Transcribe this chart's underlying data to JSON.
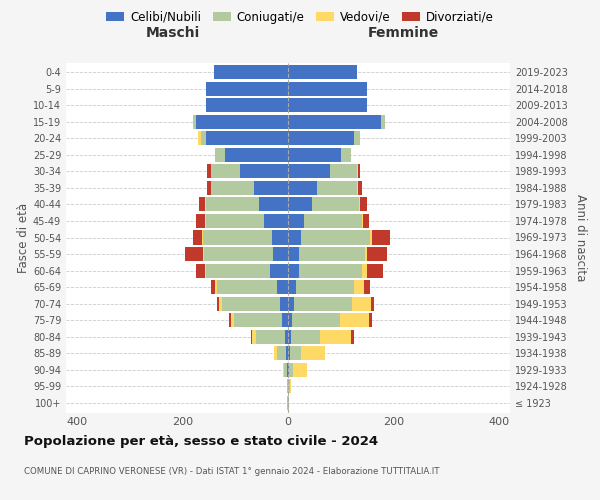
{
  "age_groups": [
    "100+",
    "95-99",
    "90-94",
    "85-89",
    "80-84",
    "75-79",
    "70-74",
    "65-69",
    "60-64",
    "55-59",
    "50-54",
    "45-49",
    "40-44",
    "35-39",
    "30-34",
    "25-29",
    "20-24",
    "15-19",
    "10-14",
    "5-9",
    "0-4"
  ],
  "birth_years": [
    "≤ 1923",
    "1924-1928",
    "1929-1933",
    "1934-1938",
    "1939-1943",
    "1944-1948",
    "1949-1953",
    "1954-1958",
    "1959-1963",
    "1964-1968",
    "1969-1973",
    "1974-1978",
    "1979-1983",
    "1984-1988",
    "1989-1993",
    "1994-1998",
    "1999-2003",
    "2004-2008",
    "2009-2013",
    "2014-2018",
    "2019-2023"
  ],
  "maschi": {
    "celibi": [
      0,
      0,
      2,
      3,
      5,
      12,
      15,
      20,
      35,
      28,
      30,
      45,
      55,
      65,
      90,
      120,
      155,
      175,
      155,
      155,
      140
    ],
    "coniugati": [
      1,
      2,
      5,
      18,
      55,
      90,
      110,
      115,
      120,
      130,
      130,
      110,
      100,
      80,
      55,
      18,
      10,
      5,
      0,
      0,
      0
    ],
    "vedovi": [
      0,
      0,
      3,
      5,
      8,
      5,
      5,
      3,
      2,
      2,
      2,
      2,
      2,
      0,
      0,
      0,
      5,
      0,
      0,
      0,
      0
    ],
    "divorziati": [
      0,
      0,
      0,
      0,
      2,
      5,
      5,
      8,
      18,
      35,
      18,
      18,
      12,
      8,
      8,
      0,
      0,
      0,
      0,
      0,
      0
    ]
  },
  "femmine": {
    "nubili": [
      0,
      0,
      2,
      3,
      5,
      8,
      12,
      15,
      20,
      20,
      25,
      30,
      45,
      55,
      80,
      100,
      125,
      175,
      150,
      150,
      130
    ],
    "coniugate": [
      1,
      3,
      8,
      22,
      55,
      90,
      110,
      110,
      120,
      125,
      130,
      110,
      90,
      75,
      50,
      20,
      12,
      8,
      0,
      0,
      0
    ],
    "vedove": [
      0,
      2,
      25,
      45,
      60,
      55,
      35,
      18,
      10,
      5,
      3,
      2,
      2,
      2,
      2,
      0,
      0,
      0,
      0,
      0,
      0
    ],
    "divorziate": [
      0,
      0,
      0,
      0,
      5,
      5,
      5,
      12,
      30,
      38,
      35,
      12,
      12,
      8,
      5,
      0,
      0,
      0,
      0,
      0,
      0
    ]
  },
  "colors": {
    "celibi": "#4472c4",
    "coniugati": "#b3c9a0",
    "vedovi": "#ffd966",
    "divorziati": "#c0392b"
  },
  "legend_labels": [
    "Celibi/Nubili",
    "Coniugati/e",
    "Vedovi/e",
    "Divorziati/e"
  ],
  "title": "Popolazione per età, sesso e stato civile - 2024",
  "subtitle": "COMUNE DI CAPRINO VERONESE (VR) - Dati ISTAT 1° gennaio 2024 - Elaborazione TUTTITALIA.IT",
  "xlabel_left": "Maschi",
  "xlabel_right": "Femmine",
  "ylabel_left": "Fasce di età",
  "ylabel_right": "Anni di nascita",
  "xlim": 420,
  "bg_color": "#f5f5f5",
  "plot_bg_color": "#ffffff"
}
